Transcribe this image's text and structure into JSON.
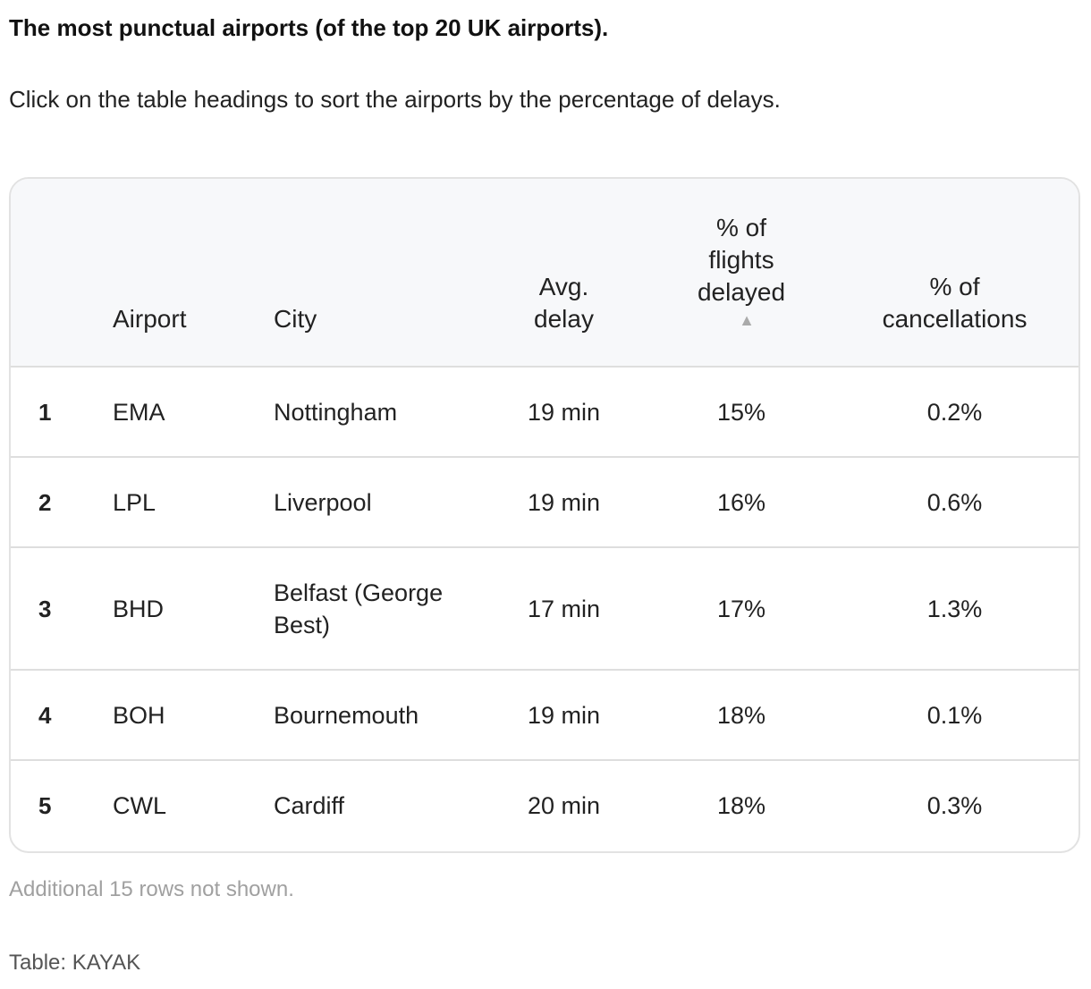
{
  "title": "The most punctual airports (of the top 20 UK airports).",
  "subtitle": "Click on the table headings to sort the airports by the percentage of delays.",
  "table": {
    "headers": {
      "airport": "Airport",
      "city": "City",
      "avg_delay": "Avg. delay",
      "pct_delayed": "% of flights delayed",
      "pct_cancellations": "% of cancellations"
    },
    "sort_indicator": "▲",
    "rows": [
      {
        "rank": "1",
        "airport": "EMA",
        "city": "Nottingham",
        "avg_delay": "19 min",
        "pct_delayed": "15%",
        "pct_cancellations": "0.2%"
      },
      {
        "rank": "2",
        "airport": "LPL",
        "city": "Liverpool",
        "avg_delay": "19 min",
        "pct_delayed": "16%",
        "pct_cancellations": "0.6%"
      },
      {
        "rank": "3",
        "airport": "BHD",
        "city": "Belfast (George Best)",
        "avg_delay": "17 min",
        "pct_delayed": "17%",
        "pct_cancellations": "1.3%"
      },
      {
        "rank": "4",
        "airport": "BOH",
        "city": "Bournemouth",
        "avg_delay": "19 min",
        "pct_delayed": "18%",
        "pct_cancellations": "0.1%"
      },
      {
        "rank": "5",
        "airport": "CWL",
        "city": "Cardiff",
        "avg_delay": "20 min",
        "pct_delayed": "18%",
        "pct_cancellations": "0.3%"
      }
    ]
  },
  "footnote": "Additional 15 rows not shown.",
  "source": "Table: KAYAK",
  "colors": {
    "header_bg": "#f7f8fa",
    "border": "#dedede",
    "footnote": "#a0a0a0"
  }
}
